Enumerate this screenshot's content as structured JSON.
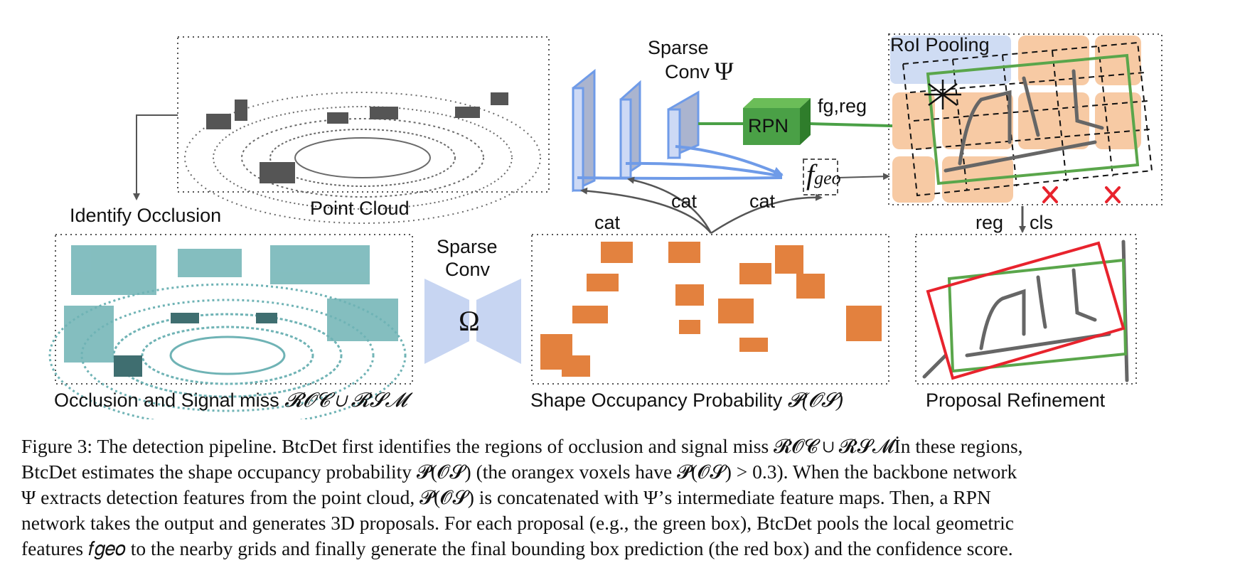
{
  "labels": {
    "point_cloud": "Point Cloud",
    "identify_occlusion": "Identify Occlusion",
    "occlusion_text": "Occlusion and Signal miss",
    "occlusion_math": "𝓡𝓞𝓒 ∪ 𝓡𝓢𝓜",
    "sparse_conv_omega_1": "Sparse",
    "sparse_conv_omega_2": "Conv",
    "omega": "Ω",
    "sparse_conv_psi_1": "Sparse",
    "sparse_conv_psi_2": "Conv",
    "psi": "Ψ",
    "rpn": "RPN",
    "fg_reg": "fg,reg",
    "f_geo": "f",
    "f_geo_sub": "geo",
    "cat_1": "cat",
    "cat_2": "cat",
    "cat_3": "cat",
    "roi_pooling": "RoI Pooling",
    "reg": "reg",
    "cls": "cls",
    "shape_occ_text": "Shape Occupancy Probability",
    "shape_occ_math": "𝓟(𝓞𝓢)",
    "proposal_refinement": "Proposal Refinement"
  },
  "caption": {
    "lines": [
      "Figure 3: The detection pipeline. BtcDet first identifies the regions of occlusion and signal miss 𝓡𝓞𝓒 ∪ 𝓡𝓢𝓜İn these regions,",
      "BtcDet estimates the shape occupancy probability 𝓟(𝓞𝓢) (the orangex voxels have 𝓟(𝓞𝓢) > 0.3). When the backbone network",
      "Ψ extracts detection features from the point cloud, 𝓟(𝓞𝓢) is concatenated with Ψ’s intermediate feature maps. Then, a RPN",
      "network takes the output and generates 3D proposals. For each proposal (e.g., the green box), BtcDet pools the local geometric",
      "features 𝑓𝑔𝑒𝑜 to the nearby grids and finally generate the final bounding box prediction (the red box) and the confidence score."
    ]
  },
  "colors": {
    "conv_blue": "#6f9be8",
    "conv_face": "#a9b4d0",
    "omega_blue": "#c7d5f2",
    "rpn_green": "#4aa046",
    "box_green": "#5aa64b",
    "box_red": "#e8232d",
    "orange_voxel": "#e0742a",
    "teal_points": "#6fb3b5",
    "roi_orange": "#f7caa4",
    "roi_blue": "#cfdcf3"
  }
}
